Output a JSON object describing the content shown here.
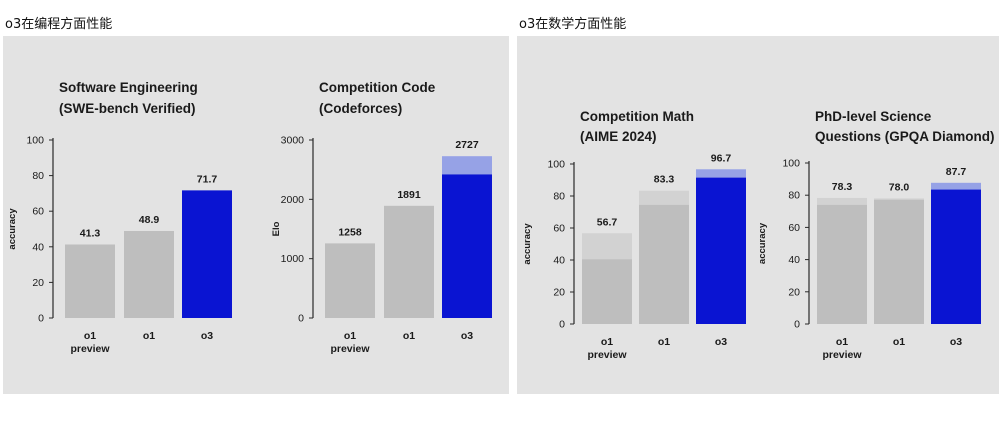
{
  "sections": [
    {
      "title": "o3在编程方面性能"
    },
    {
      "title": "o3在数学方面性能"
    }
  ],
  "colors": {
    "panel": "#e3e3e3",
    "gray_bar": "#bebebe",
    "gray_top": "#d2d2d2",
    "o3_bar": "#0a14d2",
    "o3_top": "#96a2e6",
    "axis": "#2a2a2a"
  },
  "chart_data": [
    {
      "type": "bar",
      "title": [
        "Software Engineering",
        "(SWE-bench Verified)"
      ],
      "ylabel": "accuracy",
      "ylim": [
        0,
        100
      ],
      "yticks": [
        0,
        20,
        40,
        60,
        80,
        100
      ],
      "categories": [
        [
          "o1",
          "preview"
        ],
        [
          "o1"
        ],
        [
          "o3"
        ]
      ],
      "values": [
        41.3,
        48.9,
        71.7
      ],
      "base_values": [
        null,
        null,
        null
      ],
      "labels": [
        "41.3",
        "48.9",
        "71.7"
      ]
    },
    {
      "type": "bar",
      "title": [
        "Competition Code",
        "(Codeforces)"
      ],
      "ylabel": "Elo",
      "ylim": [
        0,
        3000
      ],
      "yticks": [
        0,
        1000,
        2000,
        3000
      ],
      "categories": [
        [
          "o1",
          "preview"
        ],
        [
          "o1"
        ],
        [
          "o3"
        ]
      ],
      "values": [
        1258,
        1891,
        2727
      ],
      "base_values": [
        null,
        null,
        2420
      ],
      "labels": [
        "1258",
        "1891",
        "2727"
      ]
    },
    {
      "type": "bar",
      "title": [
        "Competition Math",
        "(AIME 2024)"
      ],
      "ylabel": "accuracy",
      "ylim": [
        0,
        100
      ],
      "yticks": [
        0,
        20,
        40,
        60,
        80,
        100
      ],
      "categories": [
        [
          "o1",
          "preview"
        ],
        [
          "o1"
        ],
        [
          "o3"
        ]
      ],
      "values": [
        56.7,
        83.3,
        96.7
      ],
      "base_values": [
        40.5,
        74.5,
        91.5
      ],
      "labels": [
        "56.7",
        "83.3",
        "96.7"
      ]
    },
    {
      "type": "bar",
      "title": [
        "PhD-level Science",
        "Questions (GPQA Diamond)"
      ],
      "ylabel": "accuracy",
      "ylim": [
        0,
        100
      ],
      "yticks": [
        0,
        20,
        40,
        60,
        80,
        100
      ],
      "categories": [
        [
          "o1",
          "preview"
        ],
        [
          "o1"
        ],
        [
          "o3"
        ]
      ],
      "values": [
        78.3,
        78.0,
        87.7
      ],
      "base_values": [
        74.0,
        77.2,
        83.5
      ],
      "labels": [
        "78.3",
        "78.0",
        "87.7"
      ]
    }
  ]
}
